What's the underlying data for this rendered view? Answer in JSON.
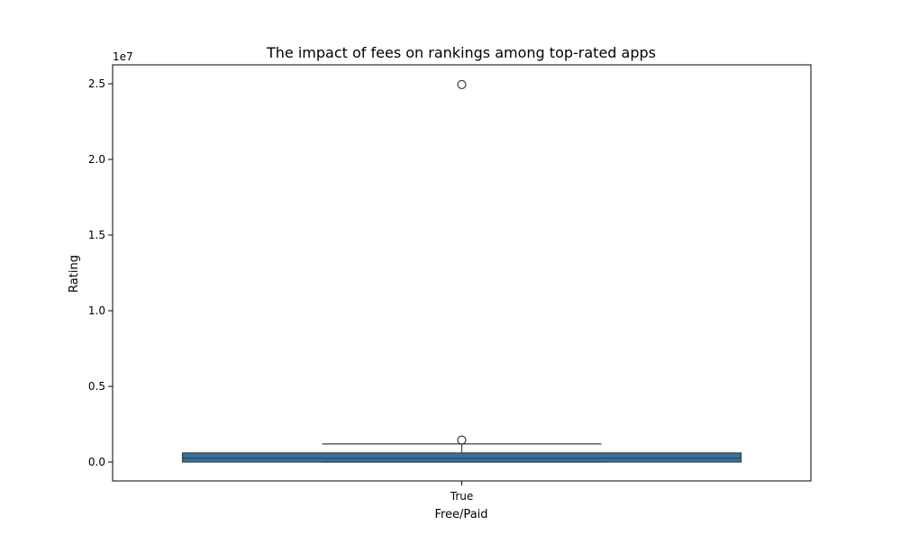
{
  "chart_data": {
    "type": "box",
    "title": "The impact of fees on rankings among top-rated apps",
    "xlabel": "Free/Paid",
    "ylabel": "Rating",
    "offset_label": "1e7",
    "categories": [
      "True"
    ],
    "ylim": [
      -1250000,
      26250000
    ],
    "y_ticks": [
      0,
      5000000,
      10000000,
      15000000,
      20000000,
      25000000
    ],
    "y_tick_labels": [
      "0.0",
      "0.5",
      "1.0",
      "1.5",
      "2.0",
      "2.5"
    ],
    "boxes": [
      {
        "category": "True",
        "q1": 0,
        "median": 250000,
        "q3": 600000,
        "whisker_low": 0,
        "whisker_high": 1200000,
        "outliers": [
          1450000,
          24950000
        ]
      }
    ],
    "colors": {
      "box_fill": "#3274a1",
      "line": "#3d3d3d"
    },
    "grid": false
  }
}
